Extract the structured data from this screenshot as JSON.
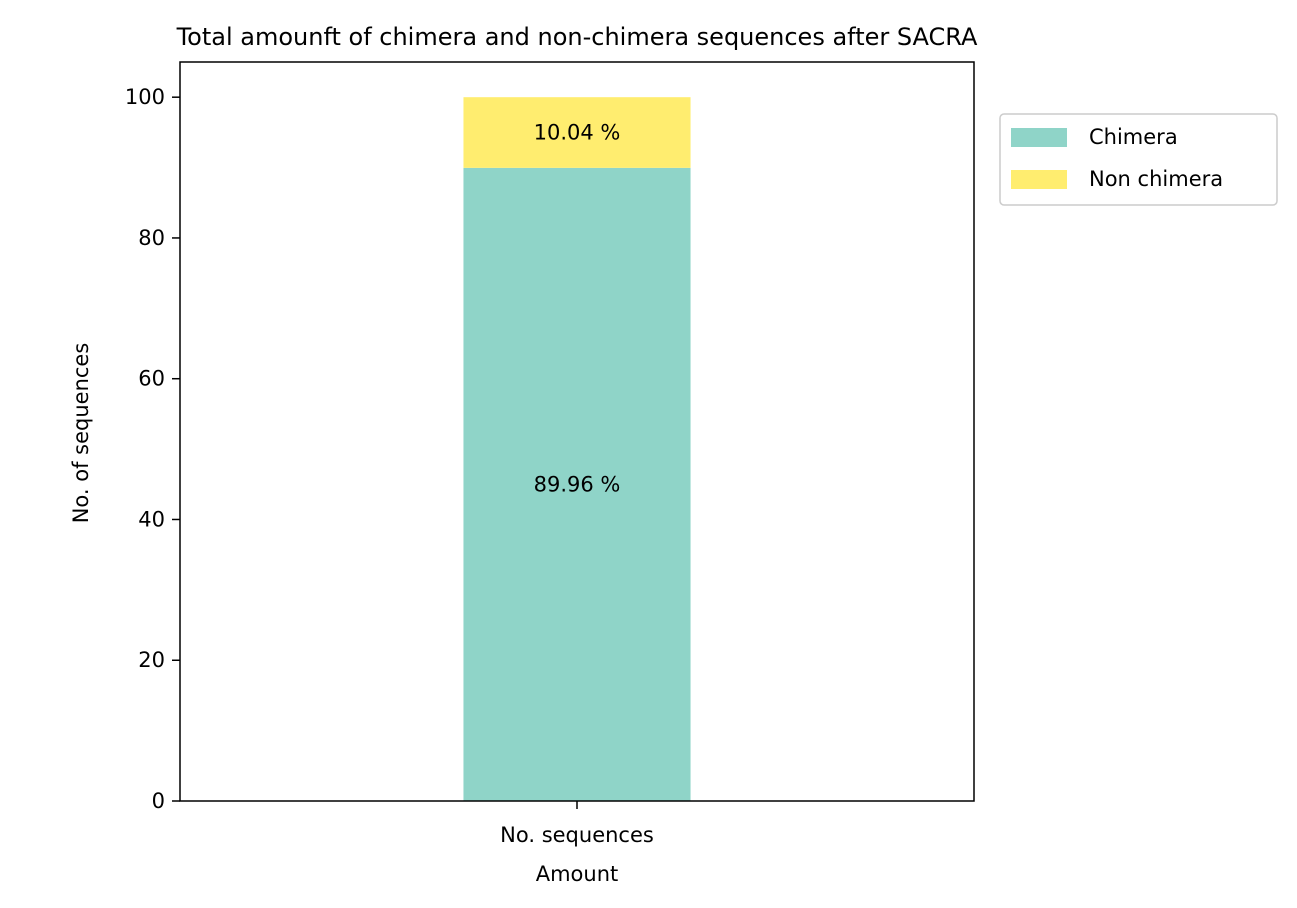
{
  "chart_data": {
    "type": "bar",
    "stacked": true,
    "title": "Total amounft of chimera and non-chimera sequences after SACRA",
    "xlabel": "Amount",
    "ylabel": "No. of sequences",
    "categories": [
      "No. sequences"
    ],
    "ylim": [
      0,
      105
    ],
    "yticks": [
      0,
      20,
      40,
      60,
      80,
      100
    ],
    "grid": false,
    "legend_position": "outside-top-right",
    "series": [
      {
        "name": "Chimera",
        "values": [
          89.96
        ],
        "color": "#8fd4c8",
        "data_labels": [
          "89.96 %"
        ]
      },
      {
        "name": "Non chimera",
        "values": [
          10.04
        ],
        "color": "#ffed6f",
        "data_labels": [
          "10.04 %"
        ]
      }
    ]
  }
}
